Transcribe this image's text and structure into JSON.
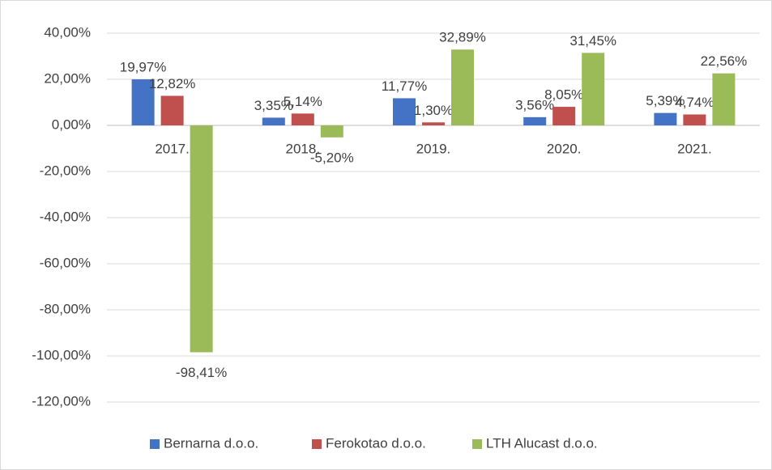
{
  "chart_data": {
    "type": "bar",
    "categories": [
      "2017.",
      "2018.",
      "2019.",
      "2020.",
      "2021."
    ],
    "series": [
      {
        "name": "Bernarna d.o.o.",
        "color": "#4472c4",
        "values": [
          19.97,
          3.35,
          11.77,
          3.56,
          5.39
        ],
        "value_labels": [
          "19,97%",
          "3,35%",
          "11,77%",
          "3,56%",
          "5,39%"
        ]
      },
      {
        "name": "Ferokotao d.o.o.",
        "color": "#c0504d",
        "values": [
          12.82,
          5.14,
          1.3,
          8.05,
          4.74
        ],
        "value_labels": [
          "12,82%",
          "5,14%",
          "1,30%",
          "8,05%",
          "4,74%"
        ]
      },
      {
        "name": "LTH Alucast d.o.o.",
        "color": "#9bbb59",
        "values": [
          -98.41,
          -5.2,
          32.89,
          31.45,
          22.56
        ],
        "value_labels": [
          "-98,41%",
          "-5,20%",
          "32,89%",
          "31,45%",
          "22,56%"
        ]
      }
    ],
    "ylim": [
      -120,
      40
    ],
    "yticks": [
      {
        "value": 40,
        "label": "40,00%"
      },
      {
        "value": 20,
        "label": "20,00%"
      },
      {
        "value": 0,
        "label": "0,00%"
      },
      {
        "value": -20,
        "label": "-20,00%"
      },
      {
        "value": -40,
        "label": "-40,00%"
      },
      {
        "value": -60,
        "label": "-60,00%"
      },
      {
        "value": -80,
        "label": "-80,00%"
      },
      {
        "value": -100,
        "label": "-100,00%"
      },
      {
        "value": -120,
        "label": "-120,00%"
      }
    ],
    "grid": true,
    "legend": "bottom"
  }
}
